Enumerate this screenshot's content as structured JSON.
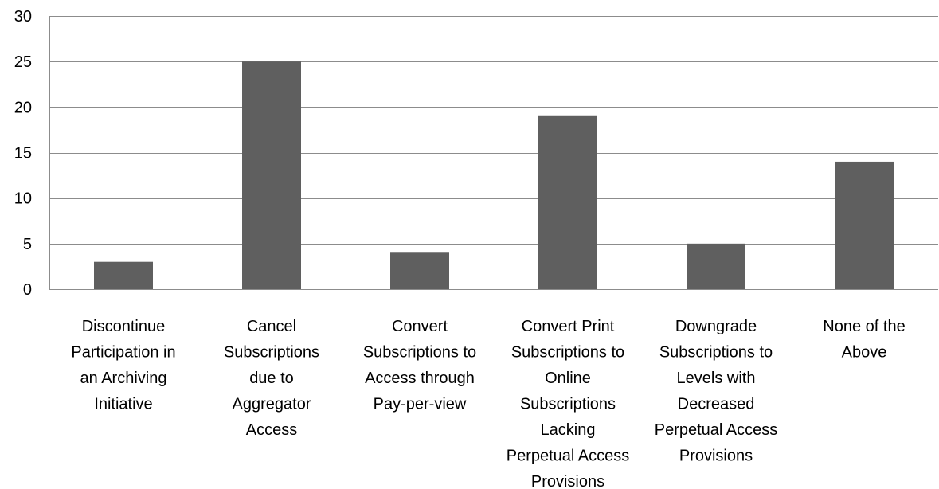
{
  "chart_data": {
    "type": "bar",
    "title": "",
    "xlabel": "",
    "ylabel": "",
    "ylim": [
      0,
      30
    ],
    "yticks": [
      0,
      5,
      10,
      15,
      20,
      25,
      30
    ],
    "grid": true,
    "legend": "none",
    "bar_color": "#5f5f5f",
    "grid_color": "#8c8c8c",
    "categories": [
      [
        "Discontinue",
        "Participation in",
        "an Archiving",
        "Initiative"
      ],
      [
        "Cancel",
        "Subscriptions",
        "due to",
        "Aggregator",
        "Access"
      ],
      [
        "Convert",
        "Subscriptions to",
        "Access through",
        "Pay-per-view"
      ],
      [
        "Convert Print",
        "Subscriptions to",
        "Online",
        "Subscriptions",
        "Lacking",
        "Perpetual Access",
        "Provisions"
      ],
      [
        "Downgrade",
        "Subscriptions to",
        "Levels with",
        "Decreased",
        "Perpetual Access",
        "Provisions"
      ],
      [
        "None of the",
        "Above"
      ]
    ],
    "values": [
      3,
      25,
      4,
      19,
      5,
      14
    ]
  }
}
